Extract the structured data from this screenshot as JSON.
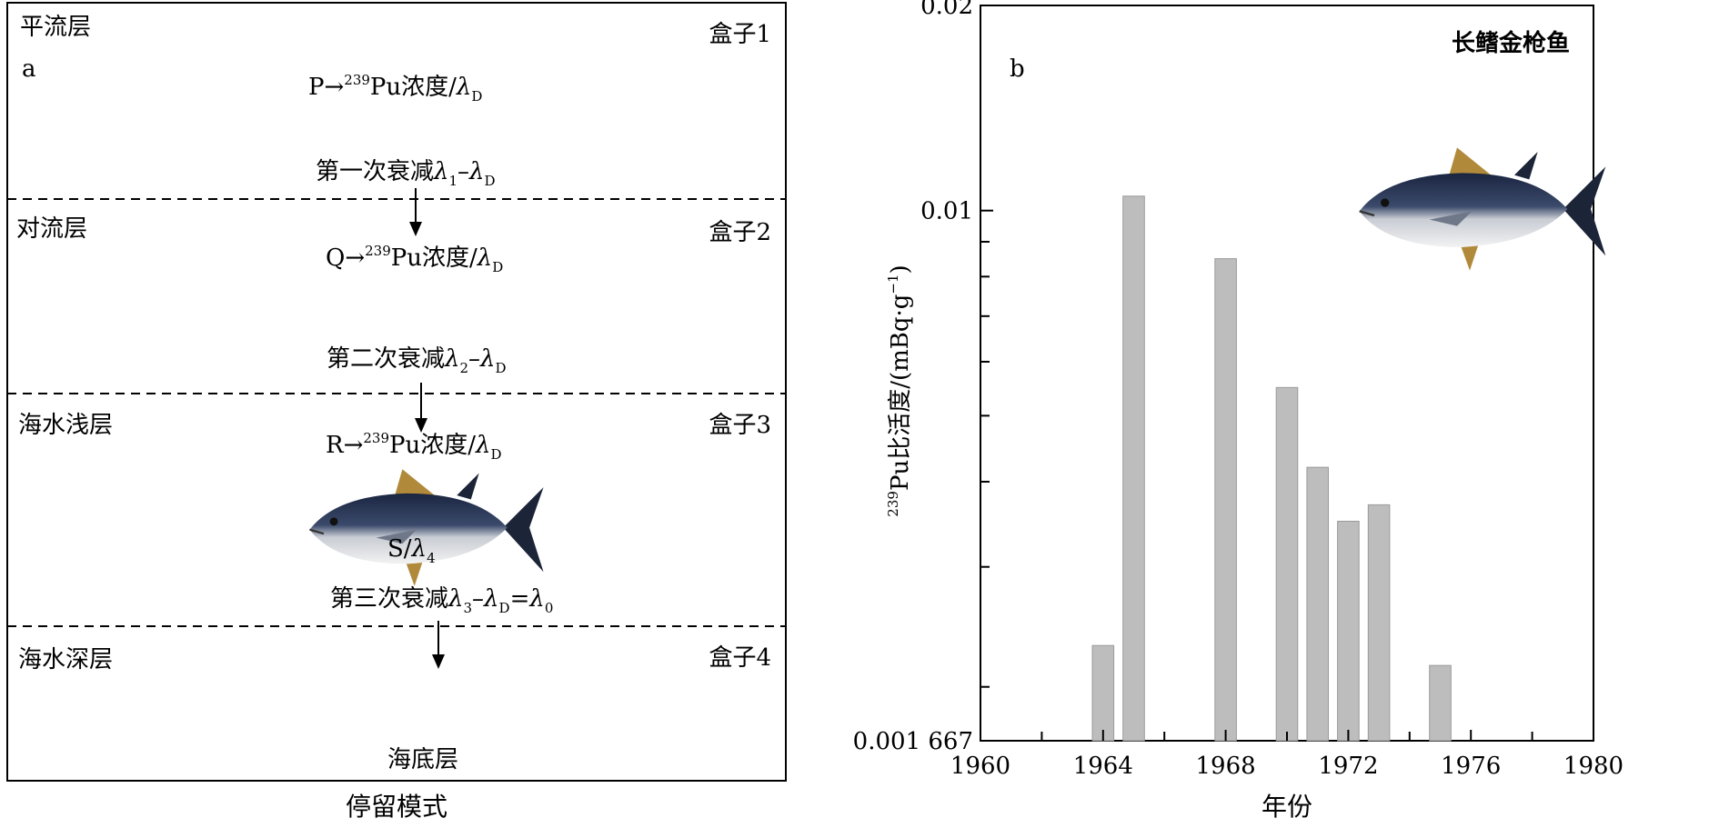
{
  "panel_a": {
    "letter": "a",
    "caption": "停留模式",
    "bottom_label": "海底层",
    "layers": [
      {
        "name": "平流层",
        "box": "盒子1",
        "conc_prefix": "P→",
        "conc_sup": "239",
        "conc_main": "Pu浓度/",
        "conc_sym": "λ",
        "conc_sub": "D"
      },
      {
        "name": "对流层",
        "box": "盒子2",
        "conc_prefix": "Q→",
        "conc_sup": "239",
        "conc_main": "Pu浓度/",
        "conc_sym": "λ",
        "conc_sub": "D"
      },
      {
        "name": "海水浅层",
        "box": "盒子3",
        "conc_prefix": "R→",
        "conc_sup": "239",
        "conc_main": "Pu浓度/",
        "conc_sym": "λ",
        "conc_sub": "D"
      },
      {
        "name": "海水深层",
        "box": "盒子4"
      }
    ],
    "decays": [
      {
        "text": "第一次衰减",
        "l1": "λ",
        "s1": "1",
        "l2": "–λ",
        "s2": "D",
        "tail": "",
        "s3": ""
      },
      {
        "text": "第二次衰减",
        "l1": "λ",
        "s1": "2",
        "l2": "–λ",
        "s2": "D",
        "tail": "",
        "s3": ""
      },
      {
        "text": "第三次衰减",
        "l1": "λ",
        "s1": "3",
        "l2": "–λ",
        "s2": "D",
        "tail": "=λ",
        "s3": "0"
      }
    ],
    "fish_label": {
      "text": "S/",
      "sym": "λ",
      "sub": "4"
    },
    "fish_icon": "tuna-fish-icon"
  },
  "chart_data": {
    "type": "bar",
    "panel_letter": "b",
    "title": "长鳍金枪鱼",
    "xlabel": "年份",
    "ylabel": {
      "sup": "239",
      "main": "Pu比活度/(mBq·g",
      "exp": "−1",
      "tail": ")"
    },
    "xlim": [
      1960,
      1980
    ],
    "x_ticks": [
      1960,
      1964,
      1968,
      1972,
      1976,
      1980
    ],
    "y_scale": "log",
    "ylim": [
      0.001667,
      0.02
    ],
    "y_tick_labels": [
      {
        "value": 0.02,
        "label": "0.02"
      },
      {
        "value": 0.01,
        "label": "0.01"
      },
      {
        "value": 0.001667,
        "label": "0.001 667"
      }
    ],
    "y_minor_ticks": [
      0.009,
      0.008,
      0.007,
      0.006,
      0.005,
      0.004,
      0.003,
      0.002
    ],
    "bar_width_years": 0.7,
    "bars": [
      {
        "x": 1964,
        "value": 0.0023
      },
      {
        "x": 1965,
        "value": 0.0105
      },
      {
        "x": 1968,
        "value": 0.0085
      },
      {
        "x": 1970,
        "value": 0.0055
      },
      {
        "x": 1971,
        "value": 0.0042
      },
      {
        "x": 1972,
        "value": 0.0035
      },
      {
        "x": 1973,
        "value": 0.0037
      },
      {
        "x": 1975,
        "value": 0.00215
      }
    ],
    "bar_color": "#bdbdbd",
    "grid": false,
    "fish_icon": "tuna-fish-icon"
  }
}
